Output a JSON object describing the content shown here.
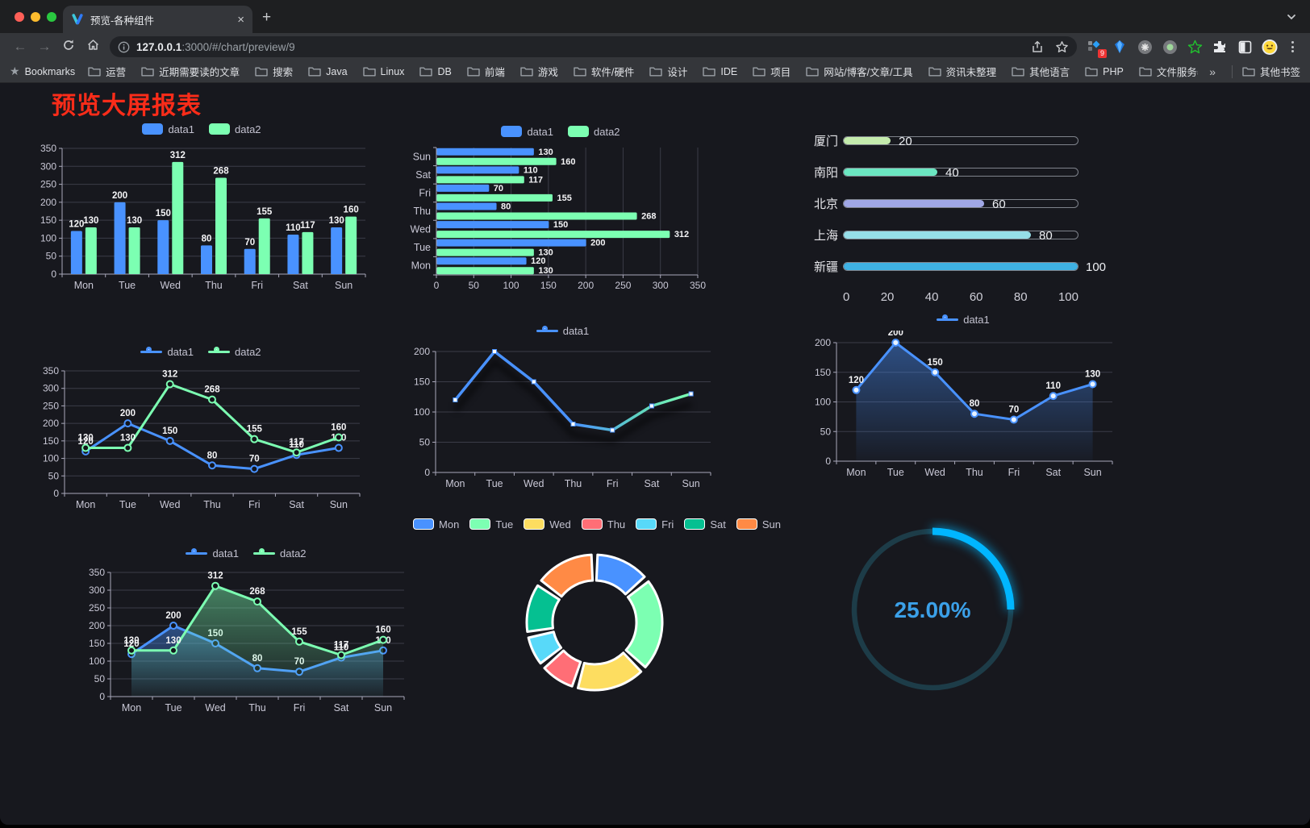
{
  "browser": {
    "tab": {
      "title": "预览-各种组件",
      "close": "×",
      "new_tab": "+"
    },
    "url": {
      "host": "127.0.0.1",
      "path": ":3000/#/chart/preview/9"
    },
    "bookmarks_label": "Bookmarks",
    "bookmarks": [
      "运营",
      "近期需要读的文章",
      "搜索",
      "Java",
      "Linux",
      "DB",
      "前端",
      "游戏",
      "软件/硬件",
      "设计",
      "IDE",
      "项目",
      "网站/博客/文章/工具",
      "资讯未整理",
      "其他语言",
      "PHP",
      "文件服务器"
    ],
    "bookmarks_overflow": "»",
    "other_bookmarks": "其他书签",
    "extension_badge": "9"
  },
  "page": {
    "title": "预览大屏报表",
    "title_color": "#fa2c19"
  },
  "chart_data": {
    "categories": [
      "Mon",
      "Tue",
      "Wed",
      "Thu",
      "Fri",
      "Sat",
      "Sun"
    ],
    "bar_vertical": {
      "type": "bar",
      "ylim": [
        0,
        350
      ],
      "ytick": 50,
      "series": [
        {
          "name": "data1",
          "color": "#4992ff",
          "values": [
            120,
            200,
            150,
            80,
            70,
            110,
            130
          ]
        },
        {
          "name": "data2",
          "color": "#7cffb2",
          "values": [
            130,
            130,
            312,
            268,
            155,
            117,
            160
          ]
        }
      ]
    },
    "bar_horizontal": {
      "type": "bar",
      "xlim": [
        0,
        350
      ],
      "xtick": 50,
      "series": [
        {
          "name": "data1",
          "color": "#4992ff",
          "values": [
            120,
            200,
            150,
            80,
            70,
            110,
            130
          ]
        },
        {
          "name": "data2",
          "color": "#7cffb2",
          "values": [
            130,
            130,
            312,
            268,
            155,
            117,
            160
          ]
        }
      ]
    },
    "city_progress": {
      "type": "bar",
      "xlim": [
        0,
        100
      ],
      "xticks": [
        0,
        20,
        40,
        60,
        80,
        100
      ],
      "items": [
        {
          "label": "厦门",
          "value": 20,
          "color": "#c4ebad"
        },
        {
          "label": "南阳",
          "value": 40,
          "color": "#6be6c1"
        },
        {
          "label": "北京",
          "value": 60,
          "color": "#a0a7e6"
        },
        {
          "label": "上海",
          "value": 80,
          "color": "#96dee8"
        },
        {
          "label": "新疆",
          "value": 100,
          "color": "#3fb1e3"
        }
      ]
    },
    "line_dual": {
      "type": "line",
      "ylim": [
        0,
        350
      ],
      "ytick": 50,
      "series": [
        {
          "name": "data1",
          "color": "#4992ff",
          "values": [
            120,
            200,
            150,
            80,
            70,
            110,
            130
          ]
        },
        {
          "name": "data2",
          "color": "#7cffb2",
          "values": [
            130,
            130,
            312,
            268,
            155,
            117,
            160
          ]
        }
      ]
    },
    "line_gradient": {
      "type": "line",
      "ylim": [
        0,
        200
      ],
      "ytick": 50,
      "series": [
        {
          "name": "data1",
          "color": "#4992ff",
          "gradient": [
            "#4992ff",
            "#7cffb2"
          ],
          "values": [
            120,
            200,
            150,
            80,
            70,
            110,
            130
          ]
        }
      ]
    },
    "area_single": {
      "type": "area",
      "ylim": [
        0,
        200
      ],
      "ytick": 50,
      "series": [
        {
          "name": "data1",
          "color": "#4992ff",
          "values": [
            120,
            200,
            150,
            80,
            70,
            110,
            130
          ]
        }
      ]
    },
    "area_dual": {
      "type": "area",
      "ylim": [
        0,
        350
      ],
      "ytick": 50,
      "series": [
        {
          "name": "data1",
          "color": "#4992ff",
          "values": [
            120,
            200,
            150,
            80,
            70,
            110,
            130
          ]
        },
        {
          "name": "data2",
          "color": "#7cffb2",
          "values": [
            130,
            130,
            312,
            268,
            155,
            117,
            160
          ]
        }
      ]
    },
    "donut": {
      "type": "pie",
      "labels": [
        "Mon",
        "Tue",
        "Wed",
        "Thu",
        "Fri",
        "Sat",
        "Sun"
      ],
      "values": [
        120,
        200,
        150,
        80,
        70,
        110,
        130
      ],
      "colors": [
        "#4992ff",
        "#7cffb2",
        "#fddd60",
        "#ff6e76",
        "#58d9f9",
        "#05c091",
        "#ff8a45"
      ]
    },
    "gauge": {
      "type": "gauge",
      "value": 25,
      "label": "25.00%",
      "color": "#00b6ff",
      "track": "#1d3c48",
      "text_color": "#3ba0e8"
    }
  }
}
